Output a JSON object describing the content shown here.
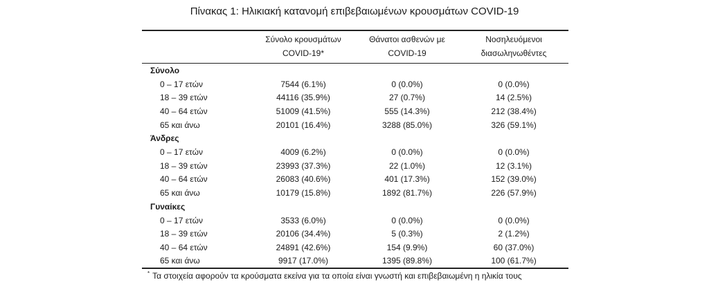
{
  "title": "Πίνακας 1: Ηλικιακή κατανομή επιβεβαιωμένων κρουσμάτων COVID-19",
  "headers": {
    "col1_line1": "Σύνολο κρουσμάτων",
    "col1_line2": "COVID-19*",
    "col2_line1": "Θάνατοι ασθενών με",
    "col2_line2": "COVID-19",
    "col3_line1": "Νοσηλευόμενοι",
    "col3_line2": "διασωληνωθέντες"
  },
  "groups": [
    {
      "name": "Σύνολο",
      "rows": [
        {
          "label": "0 – 17 ετών",
          "cases": "7544 (6.1%)",
          "deaths": "0 (0.0%)",
          "intubated": "0 (0.0%)"
        },
        {
          "label": "18 – 39 ετών",
          "cases": "44116 (35.9%)",
          "deaths": "27 (0.7%)",
          "intubated": "14 (2.5%)"
        },
        {
          "label": "40 – 64 ετών",
          "cases": "51009 (41.5%)",
          "deaths": "555 (14.3%)",
          "intubated": "212 (38.4%)"
        },
        {
          "label": "65 και άνω",
          "cases": "20101 (16.4%)",
          "deaths": "3288 (85.0%)",
          "intubated": "326 (59.1%)"
        }
      ]
    },
    {
      "name": "Άνδρες",
      "rows": [
        {
          "label": "0 – 17 ετών",
          "cases": "4009 (6.2%)",
          "deaths": "0 (0.0%)",
          "intubated": "0 (0.0%)"
        },
        {
          "label": "18 – 39 ετών",
          "cases": "23993 (37.3%)",
          "deaths": "22 (1.0%)",
          "intubated": "12 (3.1%)"
        },
        {
          "label": "40 – 64 ετών",
          "cases": "26083 (40.6%)",
          "deaths": "401 (17.3%)",
          "intubated": "152 (39.0%)"
        },
        {
          "label": "65 και άνω",
          "cases": "10179 (15.8%)",
          "deaths": "1892 (81.7%)",
          "intubated": "226 (57.9%)"
        }
      ]
    },
    {
      "name": "Γυναίκες",
      "rows": [
        {
          "label": "0 – 17 ετών",
          "cases": "3533 (6.0%)",
          "deaths": "0 (0.0%)",
          "intubated": "0 (0.0%)"
        },
        {
          "label": "18 – 39 ετών",
          "cases": "20106 (34.4%)",
          "deaths": "5 (0.3%)",
          "intubated": "2 (1.2%)"
        },
        {
          "label": "40 – 64 ετών",
          "cases": "24891 (42.6%)",
          "deaths": "154 (9.9%)",
          "intubated": "60 (37.0%)"
        },
        {
          "label": "65 και άνω",
          "cases": "9917 (17.0%)",
          "deaths": "1395 (89.8%)",
          "intubated": "100 (61.7%)"
        }
      ]
    }
  ],
  "footnote": {
    "marker": "*",
    "text": "Τα στοιχεία αφορούν τα κρούσματα εκείνα για τα οποία είναι γνωστή και επιβεβαιωμένη η ηλικία τους"
  }
}
